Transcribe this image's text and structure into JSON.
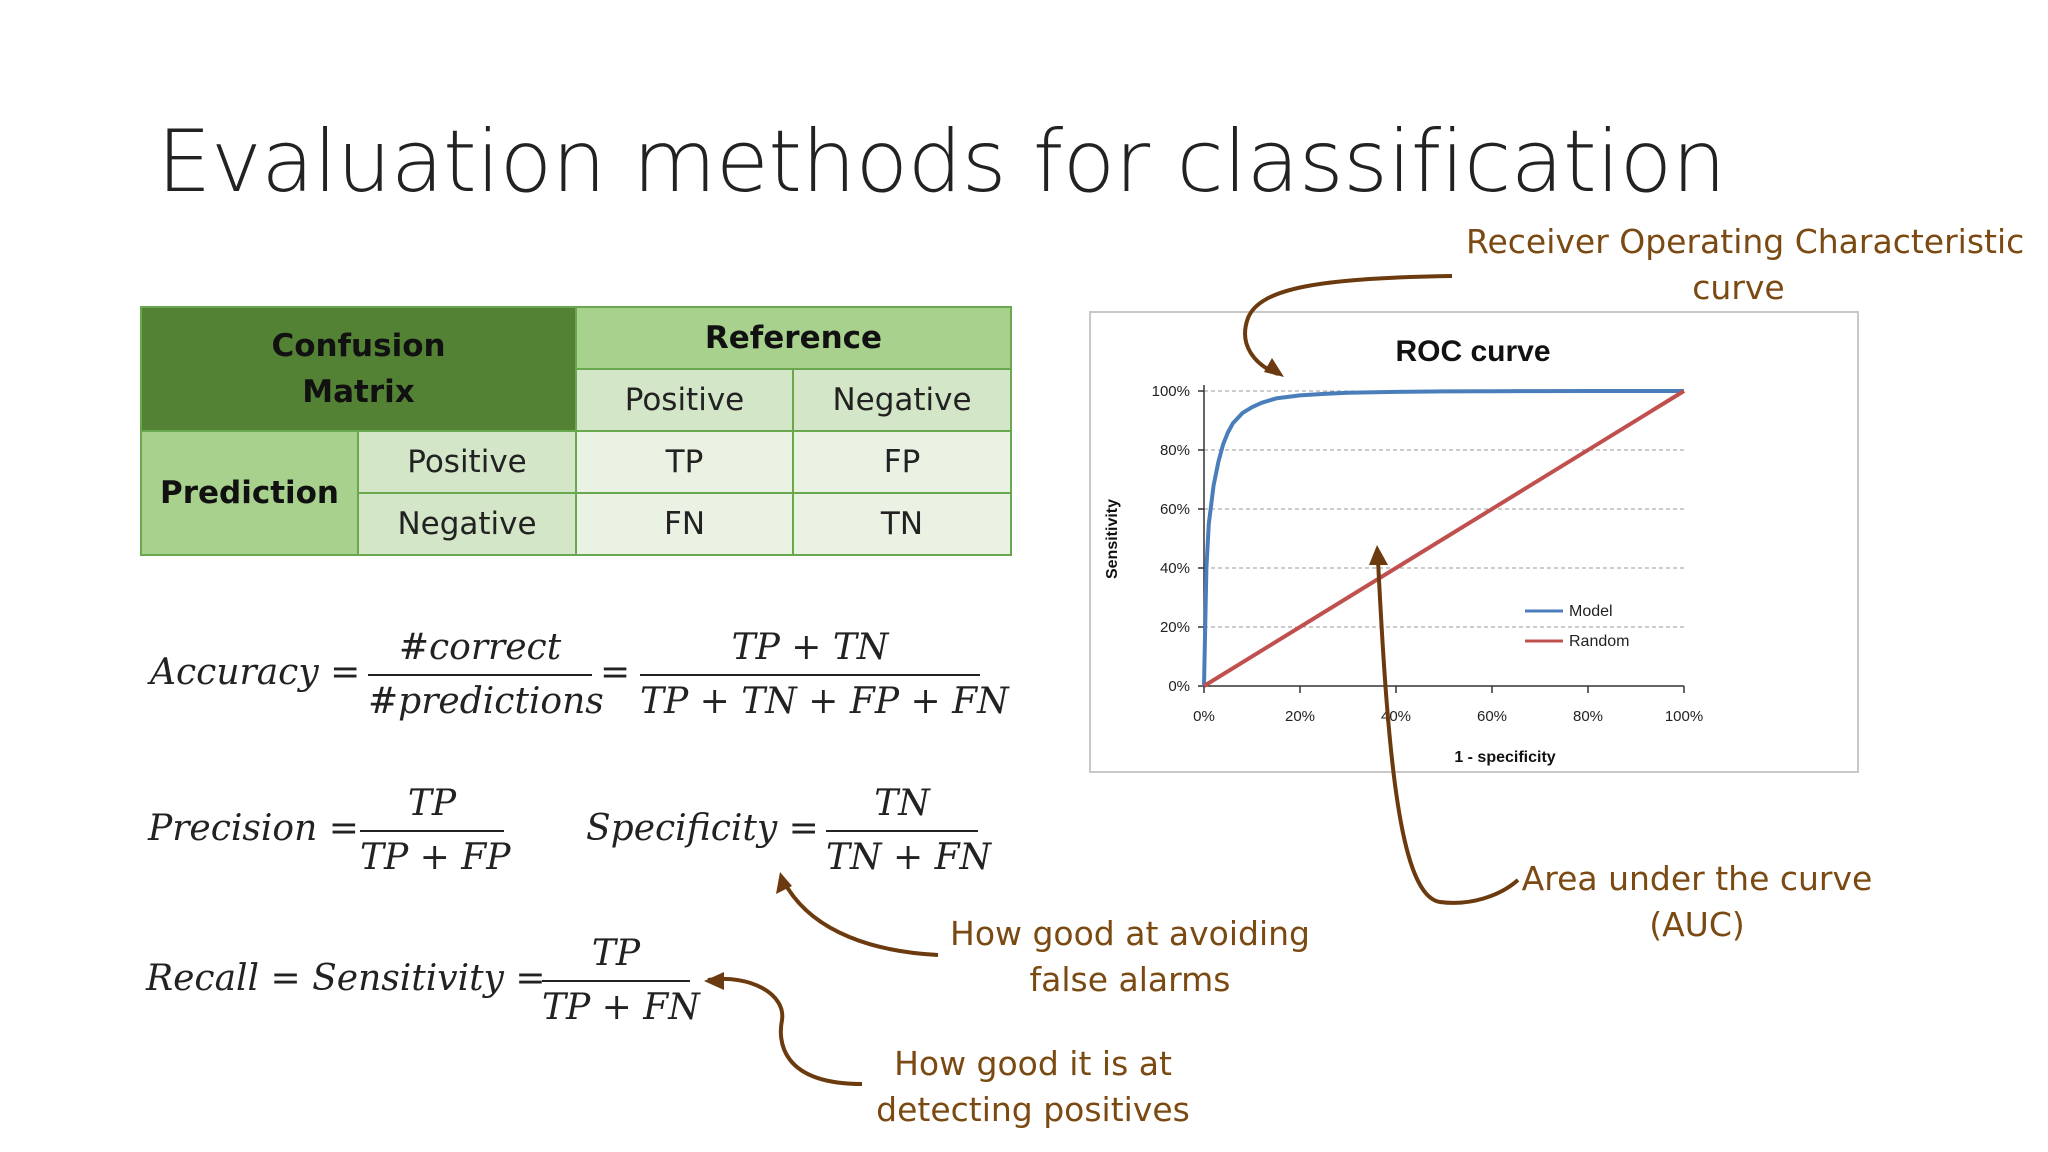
{
  "slide": {
    "title": "Evaluation methods for classification"
  },
  "confusion_matrix": {
    "header_label": "Confusion Matrix",
    "reference_label": "Reference",
    "prediction_label": "Prediction",
    "col_labels": [
      "Positive",
      "Negative"
    ],
    "row_labels": [
      "Positive",
      "Negative"
    ],
    "cells": [
      [
        "TP",
        "FP"
      ],
      [
        "FN",
        "TN"
      ]
    ],
    "colors": {
      "dark": "#548235",
      "mid": "#a9d18e",
      "light": "#d4e6c8",
      "pale": "#e9f2e3",
      "border": "#6aa84f"
    }
  },
  "formulas": {
    "accuracy": {
      "lhs": "Accuracy =",
      "num1": "#correct",
      "den1": "#predictions",
      "eq": "=",
      "num2": "TP + TN",
      "den2": "TP + TN + FP + FN"
    },
    "precision": {
      "lhs": "Precision =",
      "num": "TP",
      "den": "TP + FP"
    },
    "specificity": {
      "lhs": "Specificity =",
      "num": "TN",
      "den": "TN + FN"
    },
    "recall": {
      "lhs": "Recall = Sensitivity =",
      "num": "TP",
      "den": "TP + FN"
    }
  },
  "annotations": {
    "roc": [
      "Receiver Operating Characteristic",
      "curve"
    ],
    "auc": [
      "Area under the curve",
      "(AUC)"
    ],
    "specificity": [
      "How good at avoiding",
      "false alarms"
    ],
    "recall": [
      "How good it is at",
      "detecting positives"
    ],
    "arrow_color": "#6b3a0e"
  },
  "chart_data": {
    "type": "line",
    "title": "ROC curve",
    "xlabel": "1 - specificity",
    "ylabel": "Sensitivity",
    "xlim": [
      0,
      100
    ],
    "ylim": [
      0,
      100
    ],
    "x_ticks": [
      "0%",
      "20%",
      "40%",
      "60%",
      "80%",
      "100%"
    ],
    "y_ticks": [
      "0%",
      "20%",
      "40%",
      "60%",
      "80%",
      "100%"
    ],
    "grid": true,
    "legend_position": "bottom-right",
    "series": [
      {
        "name": "Model",
        "color": "#4a7ebb",
        "x": [
          0,
          0.5,
          1,
          2,
          3,
          4,
          5,
          6,
          8,
          10,
          12,
          15,
          20,
          25,
          30,
          40,
          50,
          60,
          70,
          80,
          90,
          100
        ],
        "y": [
          0,
          40,
          55,
          68,
          76,
          82,
          86,
          89,
          92.5,
          94.5,
          96,
          97.5,
          98.5,
          99,
          99.4,
          99.7,
          99.85,
          99.9,
          99.95,
          100,
          100,
          100
        ]
      },
      {
        "name": "Random",
        "color": "#c0504d",
        "x": [
          0,
          100
        ],
        "y": [
          0,
          100
        ]
      }
    ]
  }
}
